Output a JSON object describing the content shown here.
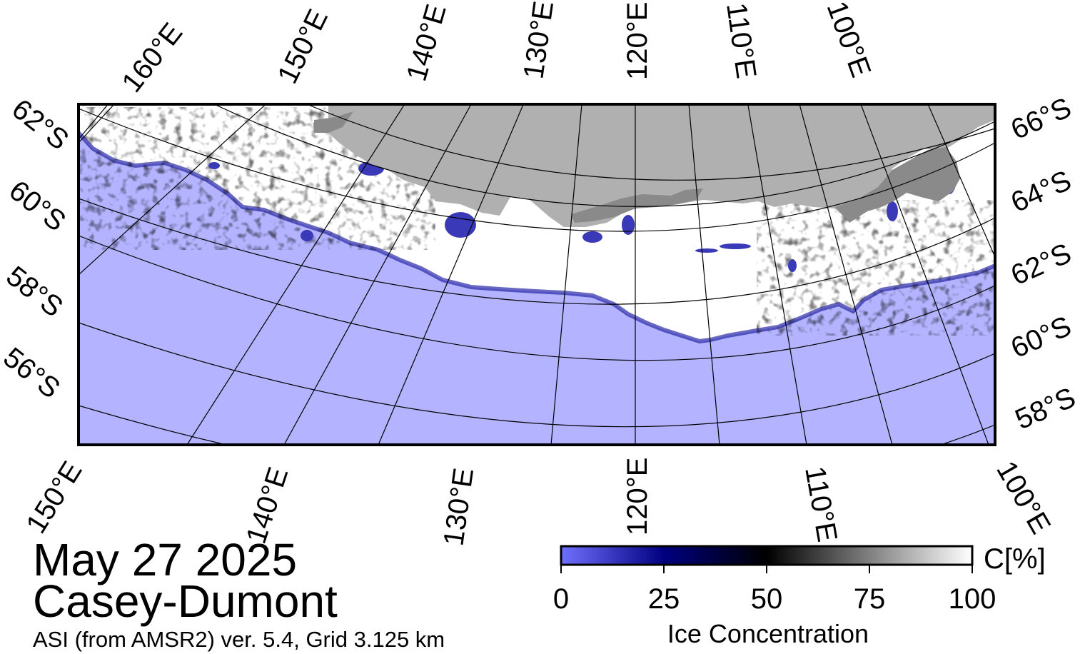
{
  "map": {
    "date": "May 27 2025",
    "region": "Casey-Dumont",
    "info": "ASI (from AMSR2) ver. 5.4,  Grid 3.125 km",
    "colors": {
      "ocean": "#b3b3ff",
      "land": "#b0b0b0",
      "ice_shelf": "#8a8a8a",
      "ice": "#ffffff",
      "frame": "#000000",
      "graticule": "#000000"
    },
    "top_lon_labels": [
      "160°E",
      "150°E",
      "140°E",
      "130°E",
      "120°E",
      "110°E",
      "100°E"
    ],
    "bottom_lon_labels": [
      "150°E",
      "140°E",
      "130°E",
      "120°E",
      "110°E",
      "100°E"
    ],
    "left_lat_labels": [
      "62°S",
      "60°S",
      "58°S",
      "56°S"
    ],
    "right_lat_labels": [
      "66°S",
      "64°S",
      "62°S",
      "60°S",
      "58°S"
    ]
  },
  "colorbar": {
    "title": "Ice Concentration",
    "unit": "C[%]",
    "ticks": [
      "0",
      "25",
      "50",
      "75",
      "100"
    ],
    "range": [
      0,
      100
    ],
    "gradient_stops": [
      "#7070ff",
      "#000080",
      "#000000",
      "#808080",
      "#ffffff"
    ]
  }
}
